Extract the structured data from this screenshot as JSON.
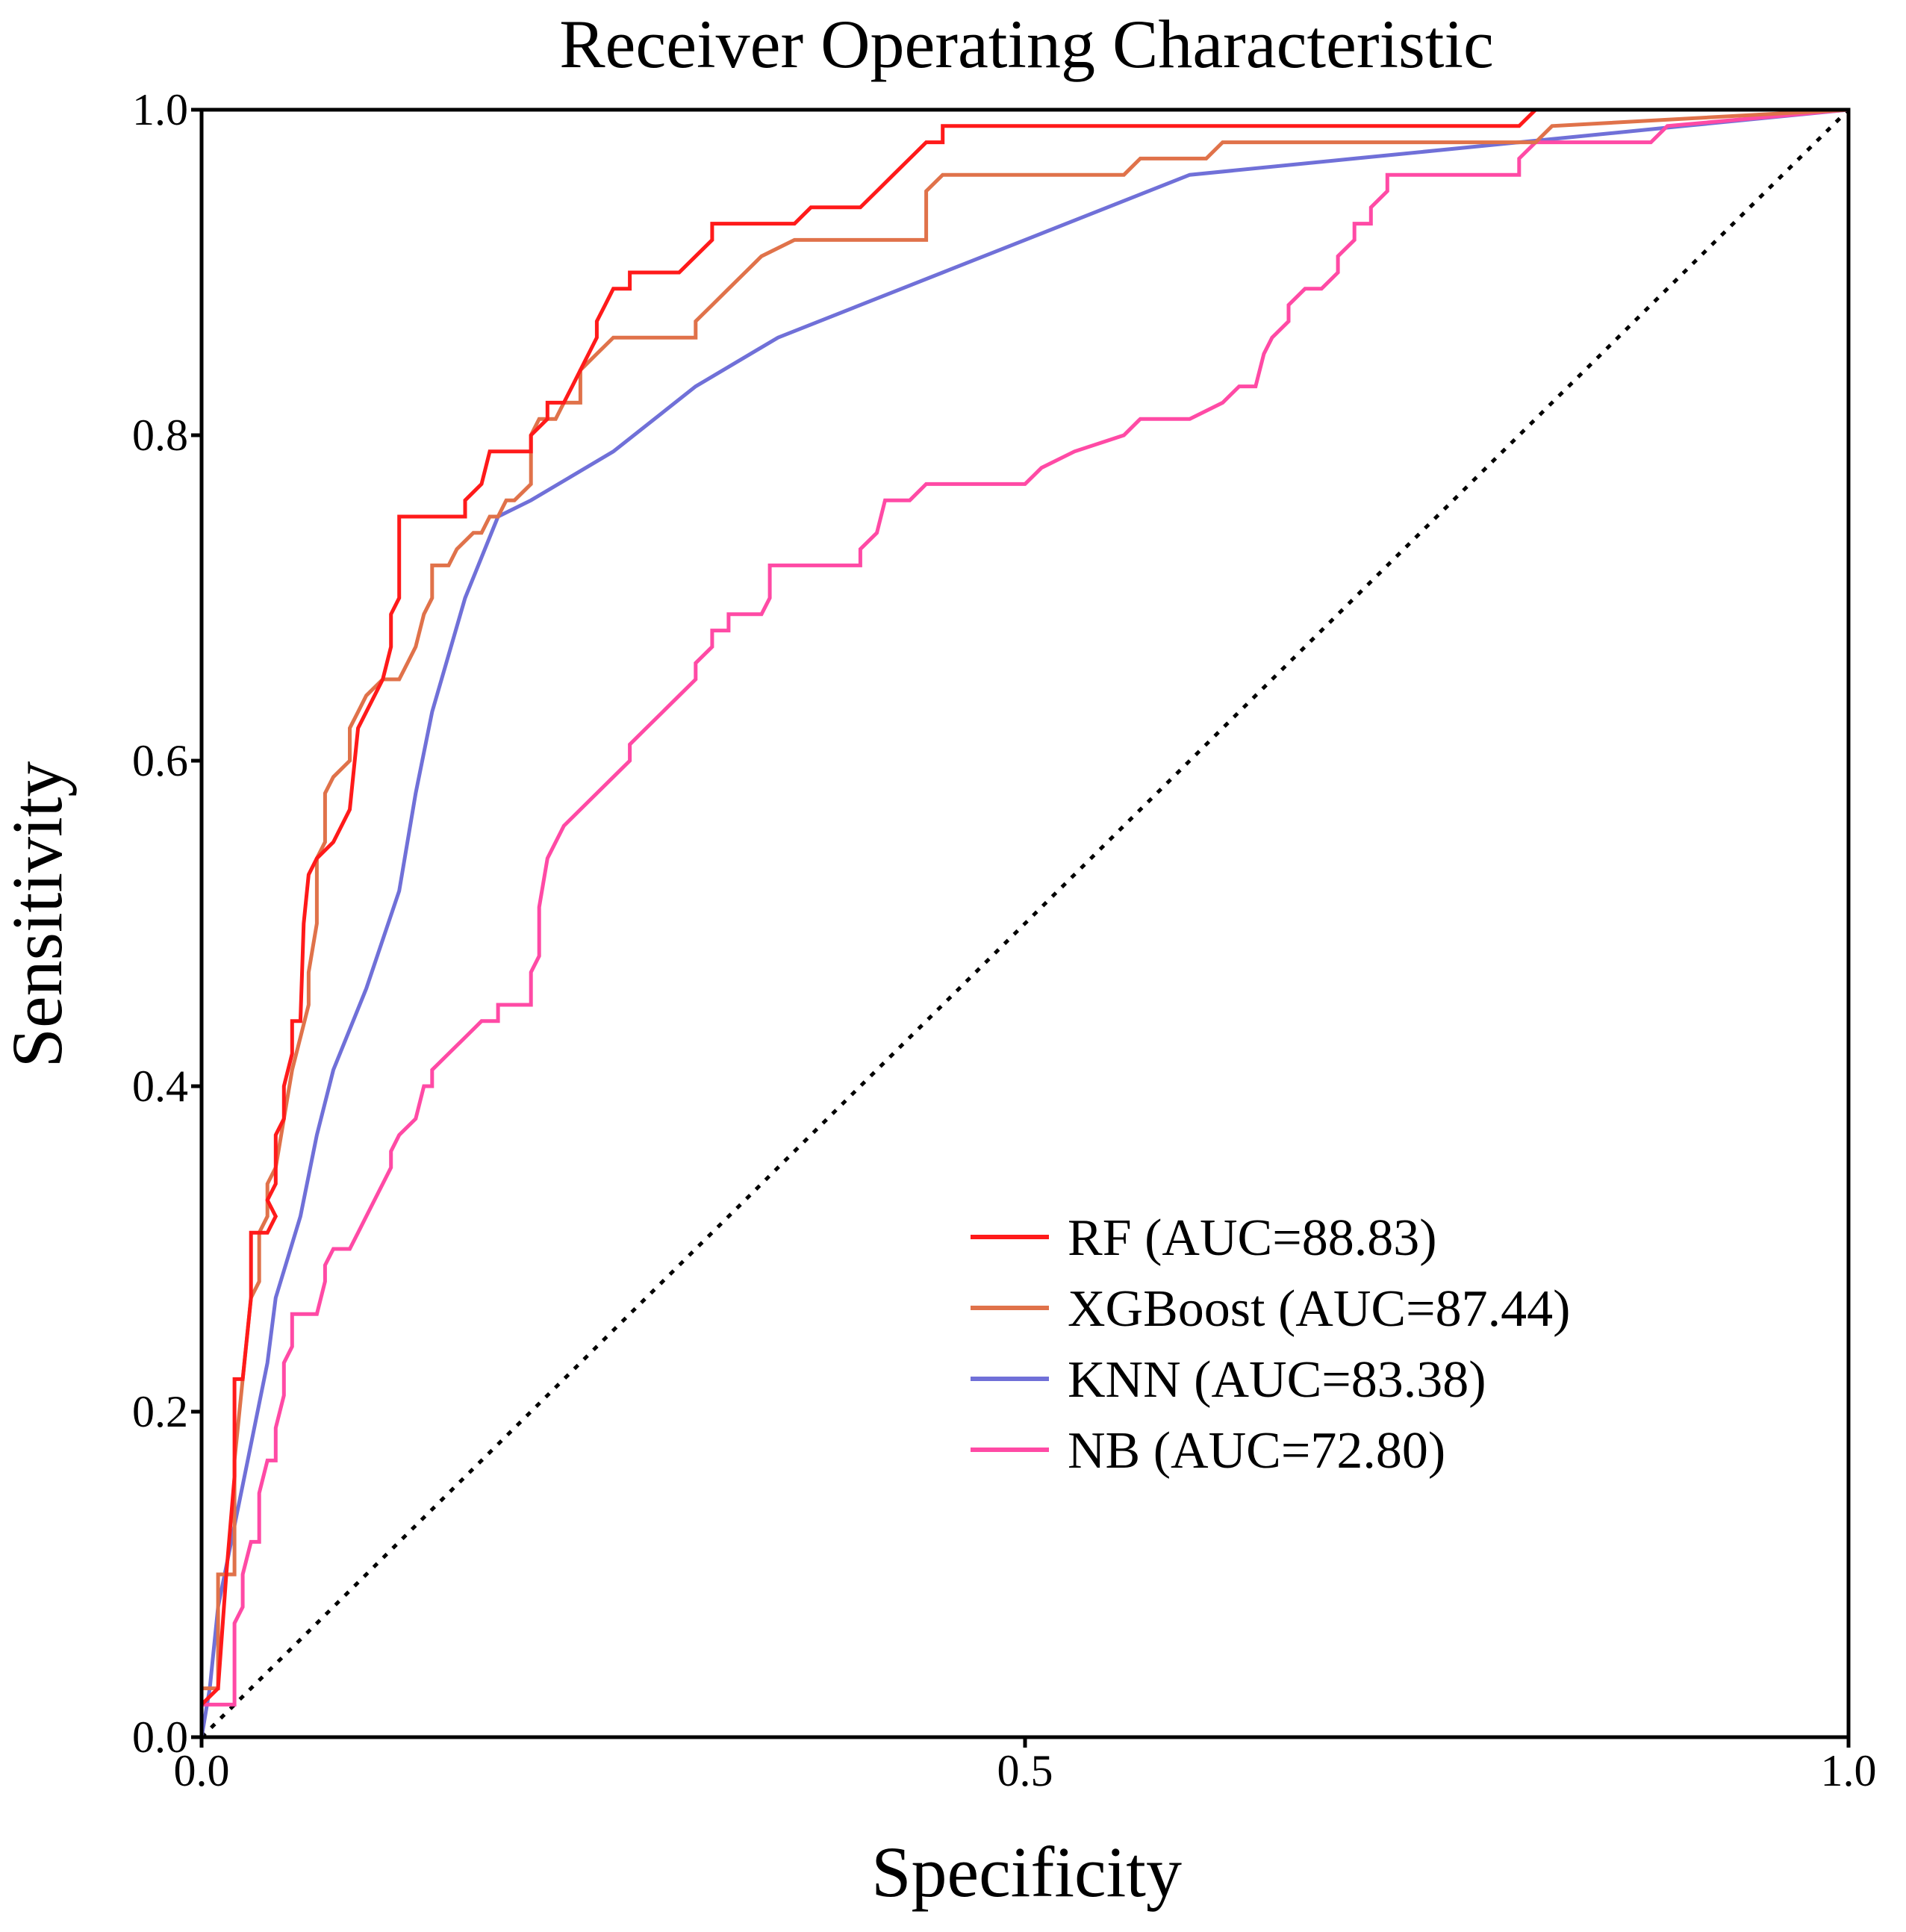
{
  "chart_data": {
    "type": "line",
    "title": "Receiver Operating Characteristic",
    "xlabel": "Specificity",
    "ylabel": "Sensitivity",
    "xlim": [
      0,
      1
    ],
    "ylim": [
      0,
      1
    ],
    "x_ticks": [
      "0.0",
      "0.5",
      "1.0"
    ],
    "y_ticks": [
      "0.0",
      "0.2",
      "0.4",
      "0.6",
      "0.8",
      "1.0"
    ],
    "grid": false,
    "legend_position": "lower-right",
    "reference_line": {
      "style": "dotted",
      "color": "#000000",
      "from": [
        0,
        0
      ],
      "to": [
        1,
        1
      ]
    },
    "series": [
      {
        "name": "RF (AUC=88.83)",
        "color": "#ff1a1a",
        "points": [
          [
            0.0,
            0.0
          ],
          [
            0.0,
            0.02
          ],
          [
            0.01,
            0.03
          ],
          [
            0.015,
            0.1
          ],
          [
            0.02,
            0.16
          ],
          [
            0.02,
            0.22
          ],
          [
            0.025,
            0.22
          ],
          [
            0.03,
            0.27
          ],
          [
            0.03,
            0.31
          ],
          [
            0.04,
            0.31
          ],
          [
            0.045,
            0.32
          ],
          [
            0.04,
            0.33
          ],
          [
            0.045,
            0.34
          ],
          [
            0.045,
            0.37
          ],
          [
            0.05,
            0.38
          ],
          [
            0.05,
            0.4
          ],
          [
            0.055,
            0.42
          ],
          [
            0.055,
            0.44
          ],
          [
            0.06,
            0.44
          ],
          [
            0.062,
            0.5
          ],
          [
            0.065,
            0.53
          ],
          [
            0.07,
            0.54
          ],
          [
            0.08,
            0.55
          ],
          [
            0.085,
            0.56
          ],
          [
            0.09,
            0.57
          ],
          [
            0.095,
            0.62
          ],
          [
            0.1,
            0.63
          ],
          [
            0.11,
            0.65
          ],
          [
            0.115,
            0.67
          ],
          [
            0.115,
            0.69
          ],
          [
            0.12,
            0.7
          ],
          [
            0.12,
            0.75
          ],
          [
            0.15,
            0.75
          ],
          [
            0.16,
            0.75
          ],
          [
            0.16,
            0.76
          ],
          [
            0.17,
            0.77
          ],
          [
            0.175,
            0.79
          ],
          [
            0.2,
            0.79
          ],
          [
            0.2,
            0.8
          ],
          [
            0.21,
            0.81
          ],
          [
            0.21,
            0.82
          ],
          [
            0.22,
            0.82
          ],
          [
            0.225,
            0.83
          ],
          [
            0.23,
            0.84
          ],
          [
            0.235,
            0.85
          ],
          [
            0.24,
            0.86
          ],
          [
            0.24,
            0.87
          ],
          [
            0.245,
            0.88
          ],
          [
            0.25,
            0.89
          ],
          [
            0.26,
            0.89
          ],
          [
            0.26,
            0.9
          ],
          [
            0.29,
            0.9
          ],
          [
            0.3,
            0.91
          ],
          [
            0.31,
            0.92
          ],
          [
            0.31,
            0.93
          ],
          [
            0.36,
            0.93
          ],
          [
            0.37,
            0.94
          ],
          [
            0.4,
            0.94
          ],
          [
            0.41,
            0.95
          ],
          [
            0.42,
            0.96
          ],
          [
            0.43,
            0.97
          ],
          [
            0.44,
            0.98
          ],
          [
            0.45,
            0.98
          ],
          [
            0.45,
            0.99
          ],
          [
            0.61,
            0.99
          ],
          [
            0.8,
            0.99
          ],
          [
            0.81,
            1.0
          ],
          [
            1.0,
            1.0
          ]
        ]
      },
      {
        "name": "XGBoost (AUC=87.44)",
        "color": "#e0724a",
        "points": [
          [
            0.0,
            0.0
          ],
          [
            0.0,
            0.03
          ],
          [
            0.01,
            0.03
          ],
          [
            0.01,
            0.1
          ],
          [
            0.02,
            0.1
          ],
          [
            0.02,
            0.17
          ],
          [
            0.025,
            0.22
          ],
          [
            0.03,
            0.27
          ],
          [
            0.035,
            0.28
          ],
          [
            0.035,
            0.31
          ],
          [
            0.04,
            0.32
          ],
          [
            0.04,
            0.34
          ],
          [
            0.045,
            0.35
          ],
          [
            0.05,
            0.38
          ],
          [
            0.055,
            0.41
          ],
          [
            0.06,
            0.43
          ],
          [
            0.065,
            0.45
          ],
          [
            0.065,
            0.47
          ],
          [
            0.07,
            0.5
          ],
          [
            0.07,
            0.54
          ],
          [
            0.075,
            0.55
          ],
          [
            0.075,
            0.58
          ],
          [
            0.08,
            0.59
          ],
          [
            0.09,
            0.6
          ],
          [
            0.09,
            0.62
          ],
          [
            0.095,
            0.63
          ],
          [
            0.1,
            0.64
          ],
          [
            0.11,
            0.65
          ],
          [
            0.12,
            0.65
          ],
          [
            0.125,
            0.66
          ],
          [
            0.13,
            0.67
          ],
          [
            0.135,
            0.69
          ],
          [
            0.14,
            0.7
          ],
          [
            0.14,
            0.72
          ],
          [
            0.15,
            0.72
          ],
          [
            0.155,
            0.73
          ],
          [
            0.165,
            0.74
          ],
          [
            0.17,
            0.74
          ],
          [
            0.175,
            0.75
          ],
          [
            0.18,
            0.75
          ],
          [
            0.185,
            0.76
          ],
          [
            0.19,
            0.76
          ],
          [
            0.2,
            0.77
          ],
          [
            0.2,
            0.8
          ],
          [
            0.205,
            0.81
          ],
          [
            0.21,
            0.81
          ],
          [
            0.215,
            0.81
          ],
          [
            0.22,
            0.82
          ],
          [
            0.23,
            0.82
          ],
          [
            0.23,
            0.84
          ],
          [
            0.24,
            0.85
          ],
          [
            0.25,
            0.86
          ],
          [
            0.26,
            0.86
          ],
          [
            0.3,
            0.86
          ],
          [
            0.3,
            0.87
          ],
          [
            0.31,
            0.88
          ],
          [
            0.32,
            0.89
          ],
          [
            0.33,
            0.9
          ],
          [
            0.34,
            0.91
          ],
          [
            0.36,
            0.92
          ],
          [
            0.44,
            0.92
          ],
          [
            0.44,
            0.95
          ],
          [
            0.45,
            0.96
          ],
          [
            0.56,
            0.96
          ],
          [
            0.57,
            0.97
          ],
          [
            0.61,
            0.97
          ],
          [
            0.62,
            0.98
          ],
          [
            0.81,
            0.98
          ],
          [
            0.82,
            0.99
          ],
          [
            1.0,
            1.0
          ]
        ]
      },
      {
        "name": "KNN (AUC=83.38)",
        "color": "#7070d8",
        "points": [
          [
            0.0,
            0.0
          ],
          [
            0.005,
            0.03
          ],
          [
            0.01,
            0.08
          ],
          [
            0.02,
            0.13
          ],
          [
            0.03,
            0.18
          ],
          [
            0.04,
            0.23
          ],
          [
            0.045,
            0.27
          ],
          [
            0.06,
            0.32
          ],
          [
            0.07,
            0.37
          ],
          [
            0.08,
            0.41
          ],
          [
            0.1,
            0.46
          ],
          [
            0.12,
            0.52
          ],
          [
            0.13,
            0.58
          ],
          [
            0.14,
            0.63
          ],
          [
            0.16,
            0.7
          ],
          [
            0.18,
            0.75
          ],
          [
            0.2,
            0.76
          ],
          [
            0.25,
            0.79
          ],
          [
            0.3,
            0.83
          ],
          [
            0.35,
            0.86
          ],
          [
            0.4,
            0.88
          ],
          [
            0.45,
            0.9
          ],
          [
            0.5,
            0.92
          ],
          [
            0.55,
            0.94
          ],
          [
            0.6,
            0.96
          ],
          [
            0.7,
            0.97
          ],
          [
            0.8,
            0.98
          ],
          [
            0.9,
            0.99
          ],
          [
            1.0,
            1.0
          ]
        ]
      },
      {
        "name": "NB (AUC=72.80)",
        "color": "#ff4aa5",
        "points": [
          [
            0.0,
            0.0
          ],
          [
            0.0,
            0.02
          ],
          [
            0.02,
            0.02
          ],
          [
            0.02,
            0.07
          ],
          [
            0.025,
            0.08
          ],
          [
            0.025,
            0.1
          ],
          [
            0.03,
            0.12
          ],
          [
            0.035,
            0.12
          ],
          [
            0.035,
            0.15
          ],
          [
            0.04,
            0.17
          ],
          [
            0.045,
            0.17
          ],
          [
            0.045,
            0.19
          ],
          [
            0.05,
            0.21
          ],
          [
            0.05,
            0.23
          ],
          [
            0.055,
            0.24
          ],
          [
            0.055,
            0.26
          ],
          [
            0.07,
            0.26
          ],
          [
            0.075,
            0.28
          ],
          [
            0.075,
            0.29
          ],
          [
            0.08,
            0.3
          ],
          [
            0.09,
            0.3
          ],
          [
            0.095,
            0.31
          ],
          [
            0.1,
            0.32
          ],
          [
            0.105,
            0.33
          ],
          [
            0.11,
            0.34
          ],
          [
            0.115,
            0.35
          ],
          [
            0.115,
            0.36
          ],
          [
            0.12,
            0.37
          ],
          [
            0.13,
            0.38
          ],
          [
            0.135,
            0.4
          ],
          [
            0.14,
            0.4
          ],
          [
            0.14,
            0.41
          ],
          [
            0.15,
            0.42
          ],
          [
            0.16,
            0.43
          ],
          [
            0.17,
            0.44
          ],
          [
            0.18,
            0.44
          ],
          [
            0.18,
            0.45
          ],
          [
            0.2,
            0.45
          ],
          [
            0.2,
            0.47
          ],
          [
            0.205,
            0.48
          ],
          [
            0.205,
            0.51
          ],
          [
            0.21,
            0.54
          ],
          [
            0.215,
            0.55
          ],
          [
            0.22,
            0.56
          ],
          [
            0.23,
            0.57
          ],
          [
            0.24,
            0.58
          ],
          [
            0.25,
            0.59
          ],
          [
            0.26,
            0.6
          ],
          [
            0.26,
            0.61
          ],
          [
            0.27,
            0.62
          ],
          [
            0.28,
            0.63
          ],
          [
            0.29,
            0.64
          ],
          [
            0.3,
            0.65
          ],
          [
            0.3,
            0.66
          ],
          [
            0.31,
            0.67
          ],
          [
            0.31,
            0.68
          ],
          [
            0.32,
            0.68
          ],
          [
            0.32,
            0.69
          ],
          [
            0.34,
            0.69
          ],
          [
            0.345,
            0.7
          ],
          [
            0.345,
            0.72
          ],
          [
            0.4,
            0.72
          ],
          [
            0.4,
            0.73
          ],
          [
            0.41,
            0.74
          ],
          [
            0.415,
            0.76
          ],
          [
            0.43,
            0.76
          ],
          [
            0.44,
            0.77
          ],
          [
            0.5,
            0.77
          ],
          [
            0.51,
            0.78
          ],
          [
            0.53,
            0.79
          ],
          [
            0.56,
            0.8
          ],
          [
            0.57,
            0.81
          ],
          [
            0.6,
            0.81
          ],
          [
            0.62,
            0.82
          ],
          [
            0.63,
            0.83
          ],
          [
            0.64,
            0.83
          ],
          [
            0.645,
            0.85
          ],
          [
            0.65,
            0.86
          ],
          [
            0.66,
            0.87
          ],
          [
            0.66,
            0.88
          ],
          [
            0.67,
            0.89
          ],
          [
            0.68,
            0.89
          ],
          [
            0.69,
            0.9
          ],
          [
            0.69,
            0.91
          ],
          [
            0.7,
            0.92
          ],
          [
            0.7,
            0.93
          ],
          [
            0.71,
            0.93
          ],
          [
            0.71,
            0.94
          ],
          [
            0.72,
            0.95
          ],
          [
            0.72,
            0.96
          ],
          [
            0.8,
            0.96
          ],
          [
            0.8,
            0.97
          ],
          [
            0.81,
            0.98
          ],
          [
            0.88,
            0.98
          ],
          [
            0.89,
            0.99
          ],
          [
            1.0,
            1.0
          ]
        ]
      }
    ]
  }
}
